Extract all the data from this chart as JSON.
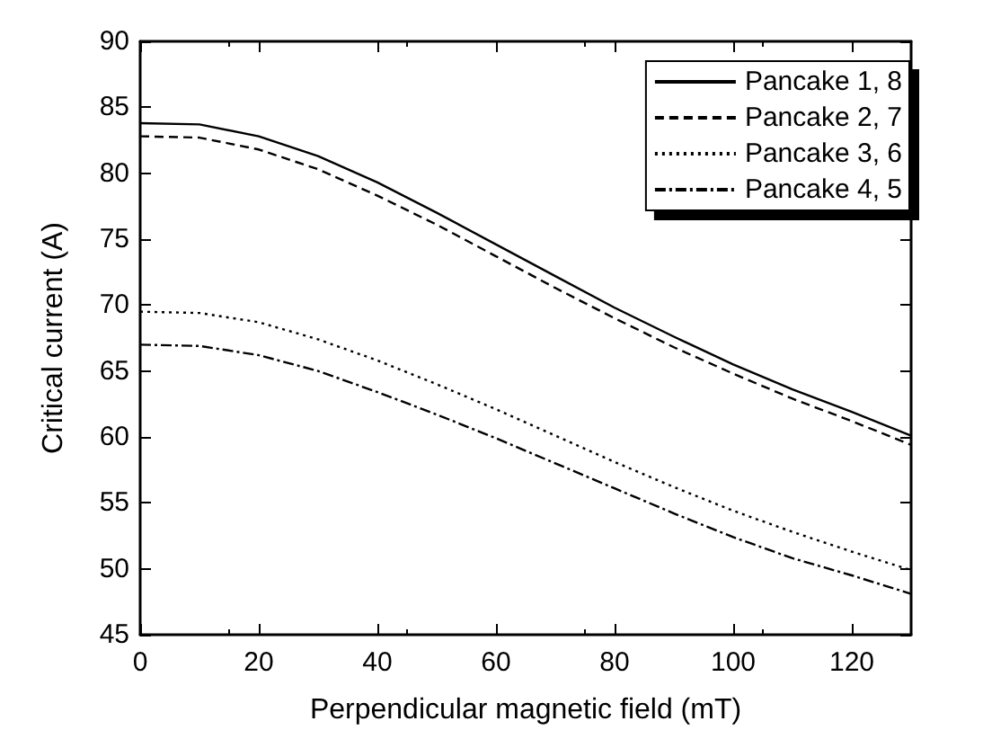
{
  "chart_data": {
    "type": "line",
    "xlabel": "Perpendicular magnetic field (mT)",
    "ylabel": "Critical current (A)",
    "x": [
      0,
      10,
      20,
      30,
      40,
      50,
      60,
      70,
      80,
      90,
      100,
      110,
      120,
      130
    ],
    "series": [
      {
        "name": "Pancake 1, 8",
        "color": "#000000",
        "line_style": "solid",
        "values": [
          83.8,
          83.7,
          82.8,
          81.3,
          79.3,
          77.0,
          74.6,
          72.2,
          69.8,
          67.6,
          65.5,
          63.6,
          61.9,
          60.1
        ]
      },
      {
        "name": "Pancake 2, 7",
        "color": "#000000",
        "line_style": "dashed",
        "values": [
          82.8,
          82.7,
          81.8,
          80.3,
          78.3,
          76.1,
          73.7,
          71.3,
          69.0,
          66.8,
          64.8,
          62.9,
          61.2,
          59.4
        ]
      },
      {
        "name": "Pancake 3, 6",
        "color": "#000000",
        "line_style": "dotted",
        "values": [
          69.5,
          69.4,
          68.7,
          67.4,
          65.8,
          64.0,
          62.1,
          60.1,
          58.1,
          56.2,
          54.4,
          52.8,
          51.3,
          49.9
        ]
      },
      {
        "name": "Pancake 4, 5",
        "color": "#000000",
        "line_style": "dashdot",
        "values": [
          67.0,
          66.9,
          66.2,
          65.0,
          63.4,
          61.7,
          59.9,
          58.0,
          56.1,
          54.2,
          52.4,
          50.8,
          49.5,
          48.1
        ]
      }
    ],
    "xlim": [
      0,
      130
    ],
    "xticks": [
      0,
      20,
      40,
      60,
      80,
      100,
      120
    ],
    "ylim": [
      45,
      90
    ],
    "yticks": [
      45,
      50,
      55,
      60,
      65,
      70,
      75,
      80,
      85,
      90
    ],
    "grid": false,
    "legend": "top right",
    "marker": "none"
  }
}
